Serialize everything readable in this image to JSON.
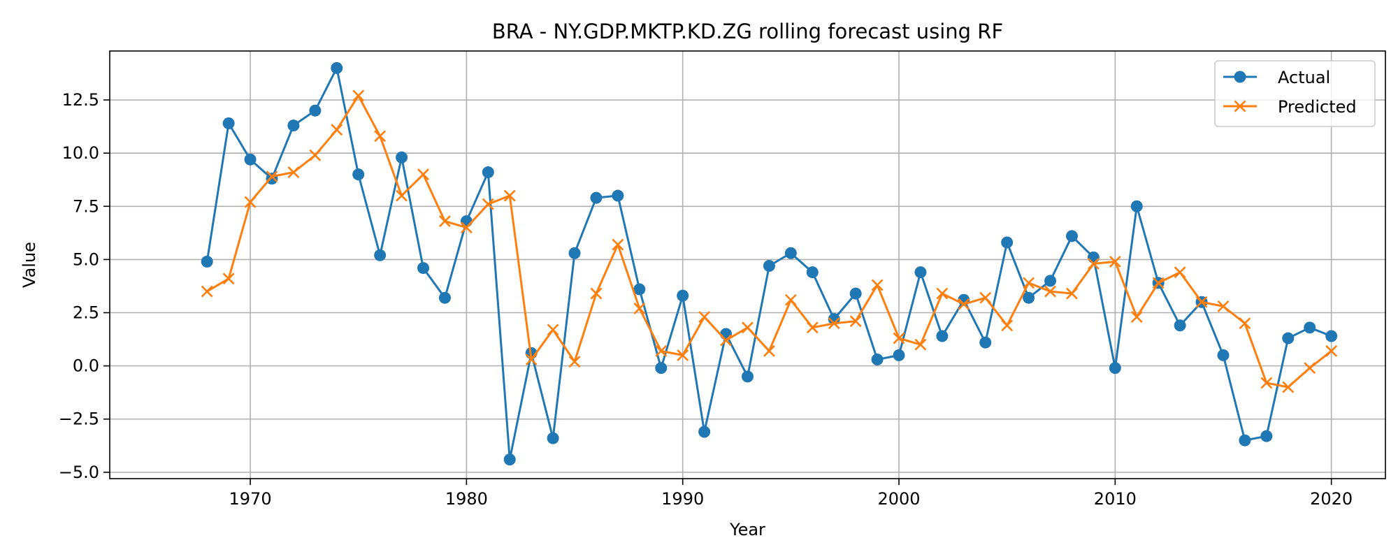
{
  "chart_data": {
    "type": "line",
    "title": "BRA - NY.GDP.MKTP.KD.ZG rolling forecast using RF",
    "xlabel": "Year",
    "ylabel": "Value",
    "xlim": [
      1963.5,
      2022.5
    ],
    "ylim": [
      -5.3,
      14.8
    ],
    "x_ticks": [
      1970,
      1980,
      1990,
      2000,
      2010,
      2020
    ],
    "y_ticks": [
      -5.0,
      -2.5,
      0.0,
      2.5,
      5.0,
      7.5,
      10.0,
      12.5
    ],
    "y_tick_labels": [
      "−5.0",
      "−2.5",
      "0.0",
      "2.5",
      "5.0",
      "7.5",
      "10.0",
      "12.5"
    ],
    "grid": true,
    "legend_position": "top-right",
    "x": [
      1968,
      1969,
      1970,
      1971,
      1972,
      1973,
      1974,
      1975,
      1976,
      1977,
      1978,
      1979,
      1980,
      1981,
      1982,
      1983,
      1984,
      1985,
      1986,
      1987,
      1988,
      1989,
      1990,
      1991,
      1992,
      1993,
      1994,
      1995,
      1996,
      1997,
      1998,
      1999,
      2000,
      2001,
      2002,
      2003,
      2004,
      2005,
      2006,
      2007,
      2008,
      2009,
      2010,
      2011,
      2012,
      2013,
      2014,
      2015,
      2016,
      2017,
      2018,
      2019,
      2020
    ],
    "series": [
      {
        "name": "Actual",
        "color": "#1f77b4",
        "marker": "circle",
        "values": [
          4.9,
          11.4,
          9.7,
          8.8,
          11.3,
          12.0,
          14.0,
          9.0,
          5.2,
          9.8,
          4.6,
          3.2,
          6.8,
          9.1,
          -4.4,
          0.6,
          -3.4,
          5.3,
          7.9,
          8.0,
          3.6,
          -0.1,
          3.3,
          -3.1,
          1.5,
          -0.5,
          4.7,
          5.3,
          4.4,
          2.2,
          3.4,
          0.3,
          0.5,
          4.4,
          1.4,
          3.1,
          1.1,
          5.8,
          3.2,
          4.0,
          6.1,
          5.1,
          -0.1,
          7.5,
          3.9,
          1.9,
          3.0,
          0.5,
          -3.5,
          -3.3,
          1.3,
          1.8,
          1.4
        ]
      },
      {
        "name": "Predicted",
        "color": "#ff7f0e",
        "marker": "x",
        "values": [
          3.5,
          4.1,
          7.7,
          8.9,
          9.1,
          9.9,
          11.1,
          12.7,
          10.8,
          8.0,
          9.0,
          6.8,
          6.5,
          7.6,
          8.0,
          0.3,
          1.7,
          0.2,
          3.4,
          5.7,
          2.7,
          0.7,
          0.5,
          2.3,
          1.2,
          1.8,
          0.7,
          3.1,
          1.8,
          2.0,
          2.1,
          3.8,
          1.3,
          1.0,
          3.4,
          2.9,
          3.2,
          1.9,
          3.9,
          3.5,
          3.4,
          4.8,
          4.9,
          2.3,
          3.9,
          4.4,
          3.0,
          2.8,
          2.0,
          -0.8,
          -1.0,
          -0.1,
          0.7
        ]
      }
    ]
  }
}
